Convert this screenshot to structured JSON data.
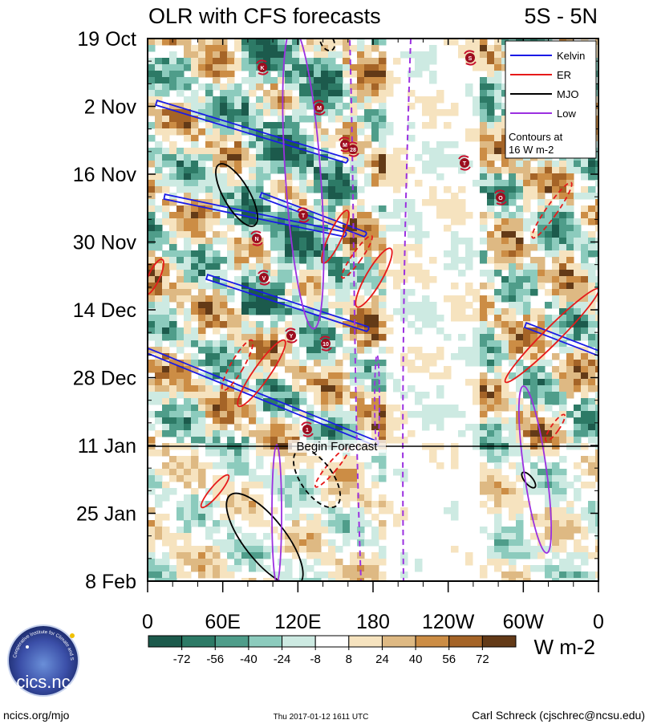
{
  "chart_data": {
    "type": "heatmap",
    "title": "OLR with CFS forecasts",
    "region": "5S - 5N",
    "y_dates": [
      "19 Oct",
      "2 Nov",
      "16 Nov",
      "30 Nov",
      "14 Dec",
      "28 Dec",
      "11 Jan",
      "25 Jan",
      "8 Feb"
    ],
    "x_longitudes": [
      "0",
      "60E",
      "120E",
      "180",
      "120W",
      "60W",
      "0"
    ],
    "colorbar": {
      "levels": [
        "-72",
        "-56",
        "-40",
        "-24",
        "-8",
        "8",
        "24",
        "40",
        "56",
        "72"
      ],
      "colors": [
        "#1c5a4c",
        "#2d7a66",
        "#4f9d8a",
        "#8ccbbd",
        "#cdeae2",
        "#ffffff",
        "#f6e3bf",
        "#deb983",
        "#cc8d45",
        "#a56427",
        "#633a17"
      ],
      "units": "W m-2"
    },
    "legend": {
      "items": [
        {
          "label": "Kelvin",
          "color": "#1a1ae6"
        },
        {
          "label": "ER",
          "color": "#e61a1a"
        },
        {
          "label": "MJO",
          "color": "#000000"
        },
        {
          "label": "Low",
          "color": "#9b30e0"
        }
      ],
      "note_line1": "Contours at",
      "note_line2": "16 W m-2",
      "position": "top-right"
    },
    "forecast_label": "Begin Forecast",
    "forecast_start": "11 Jan",
    "storm_markers": [
      "K",
      "M",
      "M",
      "28",
      "T",
      "O",
      "N",
      "V",
      "Y",
      "10",
      "1",
      "S",
      "T"
    ]
  },
  "footer": {
    "left": "ncics.org/mjo",
    "center": "Thu 2017-01-12 1611 UTC",
    "right": "Carl Schreck (cjschrec@ncsu.edu)"
  },
  "logo": {
    "text": "cics.nc",
    "ring": "Cooperative Institute for Climate and Satellites"
  }
}
